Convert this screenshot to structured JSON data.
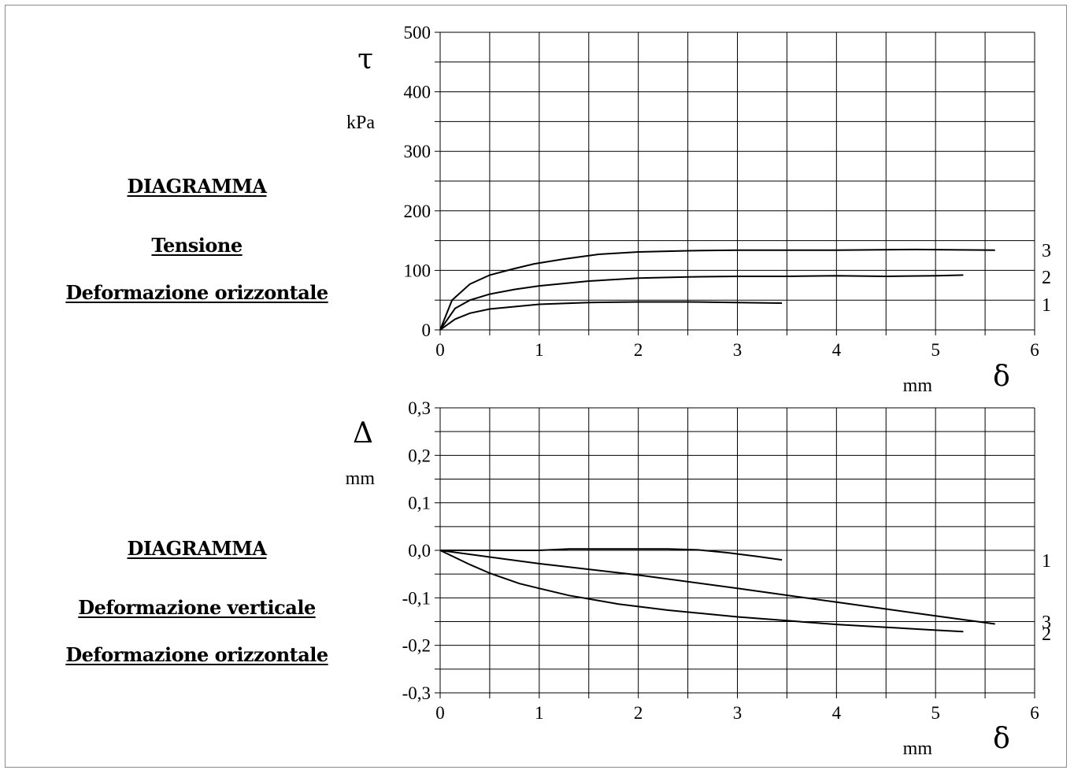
{
  "left_panel": {
    "top": {
      "line1": "DIAGRAMMA",
      "line2": "Tensione",
      "line3": "Deformazione orizzontale"
    },
    "bottom": {
      "line1": "DIAGRAMMA",
      "line2": "Deformazione verticale",
      "line3": "Deformazione orizzontale"
    }
  },
  "chart_data": [
    {
      "type": "line",
      "ysymbol": "τ",
      "yunit": "kPa",
      "xsymbol": "δ",
      "xunit": "mm",
      "xlim": [
        0,
        6
      ],
      "ylim": [
        0,
        500
      ],
      "xticks": [
        "0",
        "1",
        "2",
        "3",
        "4",
        "5",
        "6"
      ],
      "yticks": [
        "0",
        "100",
        "200",
        "300",
        "400",
        "500"
      ],
      "grid": true,
      "series": [
        {
          "name": "1",
          "x": [
            0,
            0.15,
            0.3,
            0.5,
            0.75,
            1.0,
            1.5,
            2.0,
            2.5,
            3.0,
            3.45
          ],
          "y": [
            0,
            18,
            28,
            35,
            39,
            43,
            46,
            47,
            47,
            46,
            45
          ]
        },
        {
          "name": "2",
          "x": [
            0,
            0.15,
            0.3,
            0.5,
            0.75,
            1.0,
            1.5,
            2.0,
            2.5,
            3.0,
            3.5,
            4.0,
            4.5,
            5.0,
            5.28
          ],
          "y": [
            0,
            36,
            50,
            60,
            68,
            74,
            82,
            87,
            89,
            90,
            90,
            91,
            90,
            91,
            92
          ]
        },
        {
          "name": "3",
          "x": [
            0,
            0.12,
            0.3,
            0.5,
            0.75,
            0.95,
            1.25,
            1.6,
            2.0,
            2.5,
            3.0,
            3.5,
            4.0,
            4.8,
            5.6
          ],
          "y": [
            0,
            50,
            77,
            92,
            103,
            111,
            119,
            127,
            131,
            133,
            134,
            134,
            134,
            135,
            134
          ]
        }
      ]
    },
    {
      "type": "line",
      "ysymbol": "Δ",
      "yunit": "mm",
      "xsymbol": "δ",
      "xunit": "mm",
      "xlim": [
        0,
        6
      ],
      "ylim": [
        -0.3,
        0.3
      ],
      "xticks": [
        "0",
        "1",
        "2",
        "3",
        "4",
        "5",
        "6"
      ],
      "yticks": [
        "-0,3",
        "-0,2",
        "-0,1",
        "0,0",
        "0,1",
        "0,2",
        "0,3"
      ],
      "grid": true,
      "series": [
        {
          "name": "1",
          "x": [
            0,
            0.5,
            1.0,
            1.3,
            1.8,
            2.3,
            2.6,
            2.9,
            3.2,
            3.45
          ],
          "y": [
            0,
            0,
            0,
            0.003,
            0.003,
            0.003,
            0.001,
            -0.005,
            -0.013,
            -0.02
          ]
        },
        {
          "name": "2",
          "x": [
            0,
            0.3,
            0.5,
            0.8,
            1.0,
            1.3,
            1.8,
            2.3,
            3.0,
            3.5,
            4.0,
            4.5,
            5.0,
            5.28
          ],
          "y": [
            0,
            -0.03,
            -0.048,
            -0.07,
            -0.08,
            -0.095,
            -0.113,
            -0.126,
            -0.14,
            -0.148,
            -0.156,
            -0.162,
            -0.168,
            -0.171
          ]
        },
        {
          "name": "3",
          "x": [
            0,
            1.0,
            2.0,
            3.0,
            4.0,
            5.0,
            5.6
          ],
          "y": [
            0,
            -0.028,
            -0.052,
            -0.08,
            -0.109,
            -0.138,
            -0.155
          ]
        }
      ]
    }
  ]
}
